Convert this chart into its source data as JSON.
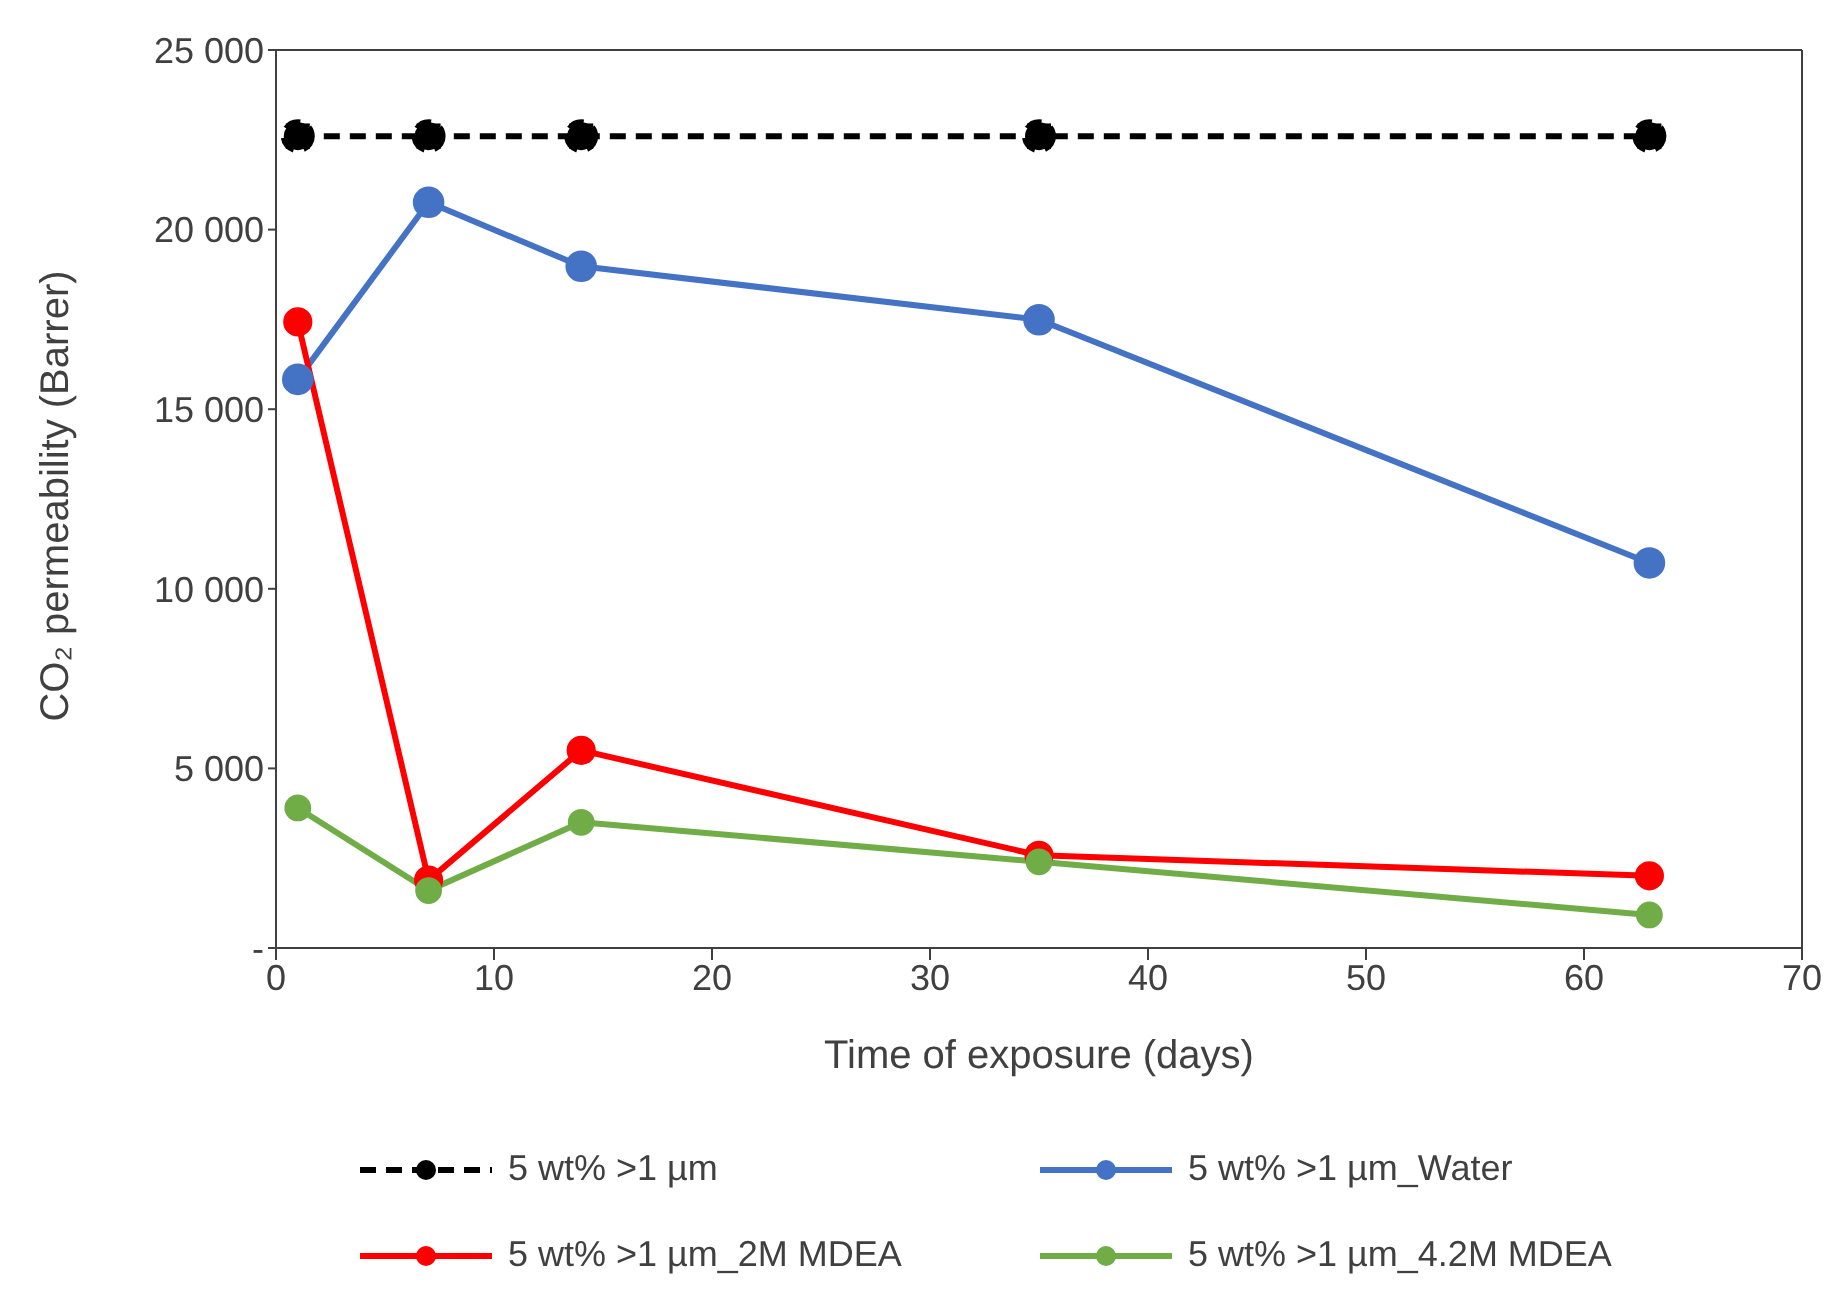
{
  "chart_data": {
    "type": "line",
    "xlabel": "Time of exposure (days)",
    "ylabel": "CO₂ permeability (Barrer)",
    "x": [
      1,
      7,
      14,
      35,
      63
    ],
    "series": [
      {
        "name": "5 wt% >1 µm",
        "color": "#000000",
        "values": [
          22600,
          22600,
          22600,
          22600,
          22600
        ],
        "errors": [
          300,
          300,
          300,
          300,
          300
        ],
        "line_style": "dashed"
      },
      {
        "name": "5 wt% >1 µm_Water",
        "color": "#4472c4",
        "values": [
          15830,
          20760,
          18980,
          17490,
          10720
        ]
      },
      {
        "name": "5 wt% >1 µm_2M MDEA",
        "color": "#ff0000",
        "values": [
          17430,
          1890,
          5500,
          2580,
          2010
        ]
      },
      {
        "name": "5 wt% >1 µm_4.2M MDEA",
        "color": "#70ad47",
        "values": [
          3900,
          1600,
          3500,
          2400,
          920
        ]
      }
    ],
    "xlim": [
      0,
      70
    ],
    "xticks": [
      0,
      10,
      20,
      30,
      40,
      50,
      60,
      70
    ],
    "ylim": [
      0,
      25000
    ],
    "yticks": [
      {
        "value": 0,
        "label": "-"
      },
      {
        "value": 5000,
        "label": "5 000"
      },
      {
        "value": 10000,
        "label": "10 000"
      },
      {
        "value": 15000,
        "label": "15 000"
      },
      {
        "value": 20000,
        "label": "20 000"
      },
      {
        "value": 25000,
        "label": "25 000"
      }
    ],
    "grid": false,
    "legend": "bottom",
    "marker": "circle",
    "line_style": "solid"
  }
}
